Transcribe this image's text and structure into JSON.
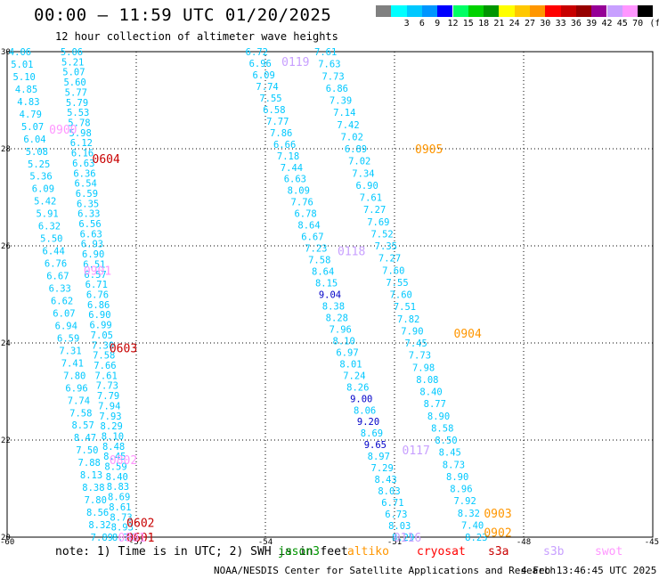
{
  "title": "00:00 – 11:59 UTC 01/20/2025",
  "subtitle": "12 hour collection of altimeter wave heights",
  "colorbar": {
    "unit_label": "(ft)",
    "bins": [
      {
        "label": "",
        "color": "#808080"
      },
      {
        "label": "3",
        "color": "#00ffff"
      },
      {
        "label": "6",
        "color": "#00c8ff"
      },
      {
        "label": "9",
        "color": "#0096ff"
      },
      {
        "label": "12",
        "color": "#0000ff"
      },
      {
        "label": "15",
        "color": "#00ff64"
      },
      {
        "label": "18",
        "color": "#00d200"
      },
      {
        "label": "21",
        "color": "#009600"
      },
      {
        "label": "24",
        "color": "#ffff00"
      },
      {
        "label": "27",
        "color": "#ffc800"
      },
      {
        "label": "30",
        "color": "#ff9600"
      },
      {
        "label": "33",
        "color": "#ff0000"
      },
      {
        "label": "36",
        "color": "#c80000"
      },
      {
        "label": "39",
        "color": "#960000"
      },
      {
        "label": "42",
        "color": "#960096"
      },
      {
        "label": "45",
        "color": "#c8a0ff"
      },
      {
        "label": "70",
        "color": "#ff96ff"
      },
      {
        "label": "",
        "color": "#000000"
      }
    ]
  },
  "note": "note: 1) Time is in UTC; 2) SWH is in feet",
  "satellites": [
    {
      "name": "jason3",
      "color": "#009600"
    },
    {
      "name": "altiko",
      "color": "#ff9600"
    },
    {
      "name": "cryosat",
      "color": "#ff0000"
    },
    {
      "name": "s3a",
      "color": "#c80000"
    },
    {
      "name": "s3b",
      "color": "#c8a0ff"
    },
    {
      "name": "swot",
      "color": "#ff96ff"
    }
  ],
  "footer_credit": "NOAA/NESDIS Center for Satellite Applications and Research",
  "footer_time": "4 Feb 13:46:45 UTC 2025",
  "chart_data": {
    "type": "scatter",
    "xlim": [
      -60,
      -45
    ],
    "ylim": [
      20,
      30
    ],
    "x_ticks": [
      "-60",
      "-57",
      "-54",
      "-51",
      "-48",
      "-45"
    ],
    "y_ticks": [
      "20",
      "22",
      "24",
      "26",
      "28",
      "30"
    ],
    "grid": true,
    "passes": [
      {
        "label": "0118",
        "color": "#c8a0ff",
        "lon": -52.0,
        "lat": 25.9
      },
      {
        "label": "0119",
        "color": "#c8a0ff",
        "lon": -53.3,
        "lat": 29.8
      },
      {
        "label": "0117",
        "color": "#c8a0ff",
        "lon": -50.5,
        "lat": 21.8
      },
      {
        "label": "0116",
        "color": "#c8a0ff",
        "lon": -50.7,
        "lat": 20.0
      },
      {
        "label": "0905",
        "color": "#ff9600",
        "lon": -50.2,
        "lat": 28.0
      },
      {
        "label": "0904",
        "color": "#ff9600",
        "lon": -49.3,
        "lat": 24.2
      },
      {
        "label": "0903",
        "color": "#ff9600",
        "lon": -48.6,
        "lat": 20.5
      },
      {
        "label": "0902",
        "color": "#ff9600",
        "lon": -48.6,
        "lat": 20.1
      },
      {
        "label": "0604",
        "color": "#c80000",
        "lon": -57.7,
        "lat": 27.8
      },
      {
        "label": "0603",
        "color": "#c80000",
        "lon": -57.3,
        "lat": 23.9
      },
      {
        "label": "0602",
        "color": "#c80000",
        "lon": -56.9,
        "lat": 20.3
      },
      {
        "label": "0601",
        "color": "#c80000",
        "lon": -56.9,
        "lat": 20.0
      },
      {
        "label": "0900",
        "color": "#ff96ff",
        "lon": -58.7,
        "lat": 28.4
      },
      {
        "label": "0901",
        "color": "#ff96ff",
        "lon": -57.9,
        "lat": 25.5
      },
      {
        "label": "0802",
        "color": "#ff96ff",
        "lon": -57.3,
        "lat": 21.6
      },
      {
        "label": "0801",
        "color": "#ff96ff",
        "lon": -57.1,
        "lat": 20.0
      }
    ],
    "tracks": [
      {
        "color": "#00c8ff",
        "start": {
          "lon": -59.7,
          "lat": 30.0
        },
        "end": {
          "lon": -57.8,
          "lat": 20.0
        },
        "values": [
          "4.06",
          "5.01",
          "5.10",
          "4.85",
          "4.83",
          "4.79",
          "5.07",
          "6.04",
          "5.08",
          "5.25",
          "5.36",
          "6.09",
          "5.42",
          "5.91",
          "6.32",
          "5.50",
          "6.44",
          "6.76",
          "6.67",
          "6.33",
          "6.62",
          "6.07",
          "6.94",
          "6.59",
          "7.31",
          "7.41",
          "7.80",
          "6.96",
          "7.74",
          "7.58",
          "8.57",
          "8.47",
          "7.50",
          "7.88",
          "8.13",
          "8.38",
          "7.80",
          "8.56",
          "8.32",
          "7.89"
        ]
      },
      {
        "color": "#00c8ff",
        "start": {
          "lon": -58.5,
          "lat": 30.0
        },
        "end": {
          "lon": -57.3,
          "lat": 20.0
        },
        "values": [
          "5.06",
          "5.21",
          "5.07",
          "5.60",
          "5.77",
          "5.79",
          "5.53",
          "5.78",
          "5.98",
          "6.12",
          "6.16",
          "6.63",
          "6.36",
          "6.54",
          "6.59",
          "6.35",
          "6.33",
          "6.56",
          "6.63",
          "6.93",
          "6.90",
          "6.51",
          "6.57",
          "6.71",
          "6.76",
          "6.86",
          "6.90",
          "6.99",
          "7.05",
          "7.30",
          "7.58",
          "7.66",
          "7.61",
          "7.73",
          "7.79",
          "7.94",
          "7.93",
          "8.29",
          "8.10",
          "8.48",
          "8.45",
          "8.59",
          "8.40",
          "8.83",
          "8.69",
          "8.61",
          "8.73",
          "8.93",
          "8.76"
        ]
      },
      {
        "color": "#00c8ff",
        "start": {
          "lon": -54.2,
          "lat": 30.0
        },
        "end": {
          "lon": -50.8,
          "lat": 20.0
        },
        "values": [
          "6.72",
          "6.96",
          "6.09",
          "7.74",
          "7.55",
          "6.58",
          "7.77",
          "7.86",
          "6.66",
          "7.18",
          "7.44",
          "6.63",
          "8.09",
          "7.76",
          "6.78",
          "8.64",
          "6.67",
          "7.23",
          "7.58",
          "8.64",
          "8.15",
          "9.04",
          "8.38",
          "8.28",
          "7.96",
          "8.10",
          "6.97",
          "8.01",
          "7.24",
          "8.26",
          "9.00",
          "8.06",
          "9.20",
          "8.69",
          "9.65",
          "8.97",
          "7.29",
          "8.43",
          "8.03",
          "6.71",
          "6.73",
          "8.03",
          "8.29"
        ]
      },
      {
        "color": "#00c8ff",
        "start": {
          "lon": -52.6,
          "lat": 30.0
        },
        "end": {
          "lon": -49.1,
          "lat": 20.0
        },
        "values": [
          "7.61",
          "7.63",
          "7.73",
          "6.86",
          "7.39",
          "7.14",
          "7.42",
          "7.02",
          "6.89",
          "7.02",
          "7.34",
          "6.90",
          "7.61",
          "7.27",
          "7.69",
          "7.52",
          "7.35",
          "7.27",
          "7.60",
          "7.55",
          "7.60",
          "7.51",
          "7.82",
          "7.90",
          "7.45",
          "7.73",
          "7.98",
          "8.08",
          "8.40",
          "8.77",
          "8.90",
          "8.58",
          "8.50",
          "8.45",
          "8.73",
          "8.90",
          "8.96",
          "7.92",
          "8.32",
          "7.40",
          "8.23"
        ]
      }
    ]
  }
}
